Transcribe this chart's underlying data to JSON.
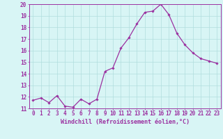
{
  "x": [
    0,
    1,
    2,
    3,
    4,
    5,
    6,
    7,
    8,
    9,
    10,
    11,
    12,
    13,
    14,
    15,
    16,
    17,
    18,
    19,
    20,
    21,
    22,
    23
  ],
  "y": [
    11.7,
    11.9,
    11.5,
    12.1,
    11.2,
    11.1,
    11.8,
    11.4,
    11.8,
    14.2,
    14.5,
    16.2,
    17.1,
    18.3,
    19.3,
    19.4,
    20.0,
    19.1,
    17.5,
    16.5,
    15.8,
    15.3,
    15.1,
    14.9
  ],
  "line_color": "#9b30a0",
  "marker": "D",
  "marker_size": 1.8,
  "line_width": 0.9,
  "background_color": "#d8f5f5",
  "grid_color": "#b0dede",
  "xlabel": "Windchill (Refroidissement éolien,°C)",
  "xlabel_fontsize": 6.0,
  "tick_fontsize": 5.5,
  "ylim": [
    11,
    20
  ],
  "xlim_min": -0.5,
  "xlim_max": 23.5,
  "yticks": [
    11,
    12,
    13,
    14,
    15,
    16,
    17,
    18,
    19,
    20
  ],
  "xticks": [
    0,
    1,
    2,
    3,
    4,
    5,
    6,
    7,
    8,
    9,
    10,
    11,
    12,
    13,
    14,
    15,
    16,
    17,
    18,
    19,
    20,
    21,
    22,
    23
  ],
  "spine_color": "#9b30a0"
}
